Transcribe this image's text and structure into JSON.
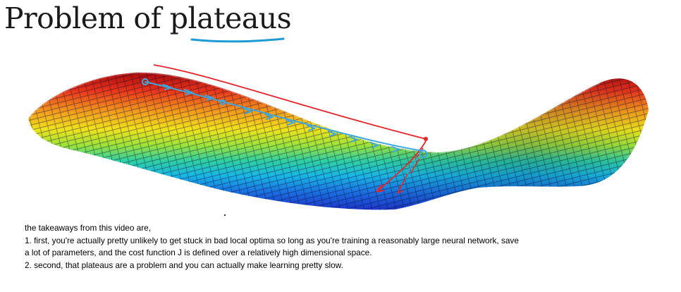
{
  "slide": {
    "title": "Problem of plateaus"
  },
  "notes": {
    "lines": [
      "the takeaways from this video are,",
      "1. first, you're actually pretty unlikely to get stuck in bad local optima so long as you're training a reasonably large neural network, save",
      "a lot of parameters, and the cost function J is defined over a relatively high dimensional space.",
      "2. second, that plateaus are a problem and you can actually make learning pretty slow."
    ]
  },
  "colors": {
    "title_text": "#1a1a1a",
    "underline": "#1e9ad6",
    "red_annotation": "#e8252a",
    "blue_annotation": "#3aa7e0",
    "surface_high": "#d11a1a",
    "surface_mid": "#f2e21b",
    "surface_low": "#1c3fd6"
  }
}
